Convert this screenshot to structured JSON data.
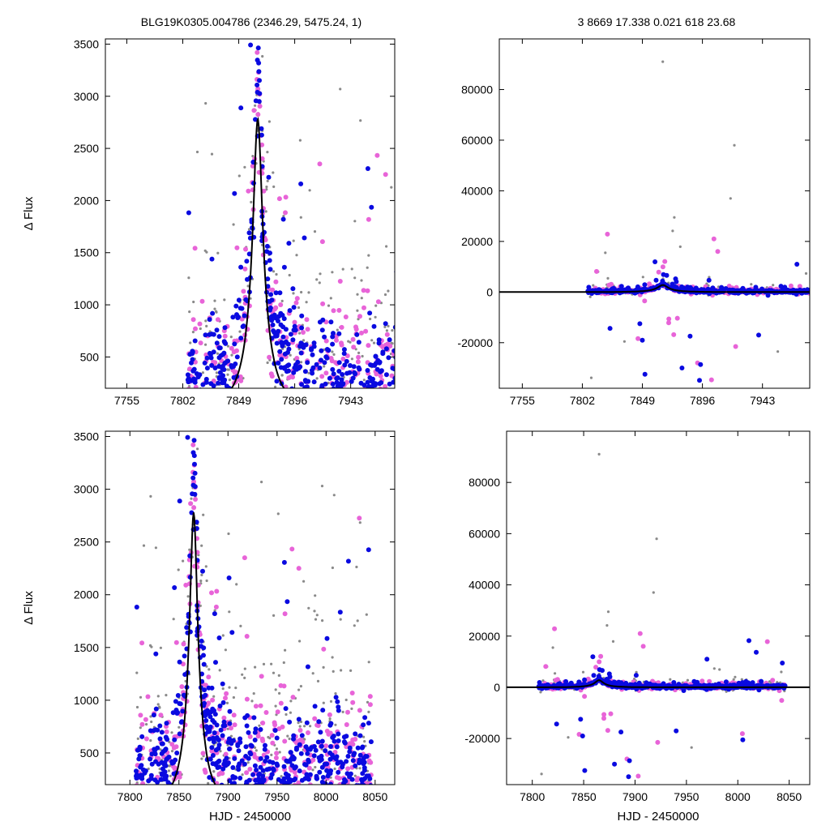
{
  "header": {
    "left": "BLG19K0305.004786 (2346.29, 5475.24,    1)",
    "right": "3   8669   17.338   0.021   618   23.68"
  },
  "colors": {
    "blue": "#0a0ae0",
    "magenta": "#e864d8",
    "gray": "#8a8a8a",
    "model": "#000000",
    "frame": "#000000"
  },
  "model": {
    "type": "microlensing-like single peak",
    "t0": 7865,
    "baseline": 0,
    "peak": 2780
  },
  "chart_data": [
    {
      "type": "scatter",
      "panel": "top-left",
      "title": "",
      "xlabel": "",
      "ylabel": "Δ Flux",
      "xlim": [
        7737,
        7980
      ],
      "ylim": [
        200,
        3550
      ],
      "xticks": [
        7755,
        7802,
        7849,
        7896,
        7943
      ],
      "xtick_labels": [
        "7755",
        "7802",
        "7849",
        "7896",
        "7943"
      ],
      "yticks": [
        500,
        1000,
        1500,
        2000,
        2500,
        3000,
        3500
      ],
      "ytick_labels": [
        "500",
        "1000",
        "1500",
        "2000",
        "2500",
        "3000",
        "3500"
      ],
      "series": [
        {
          "color": "blue",
          "marker": "large-dot",
          "note": "dense cluster tracing the peak"
        },
        {
          "color": "magenta",
          "marker": "large-dot"
        },
        {
          "color": "gray",
          "marker": "small-dot"
        }
      ],
      "model_line": true
    },
    {
      "type": "scatter",
      "panel": "top-right",
      "title": "",
      "xlabel": "",
      "ylabel": "",
      "xlim": [
        7737,
        7980
      ],
      "ylim": [
        -38000,
        100000
      ],
      "xticks": [
        7755,
        7802,
        7849,
        7896,
        7943
      ],
      "xtick_labels": [
        "7755",
        "7802",
        "7849",
        "7896",
        "7943"
      ],
      "yticks": [
        -20000,
        0,
        20000,
        40000,
        60000,
        80000
      ],
      "ytick_labels": [
        "-20000",
        "0",
        "20000",
        "40000",
        "60000",
        "80000"
      ],
      "series": [
        {
          "color": "blue",
          "marker": "large-dot"
        },
        {
          "color": "magenta",
          "marker": "large-dot"
        },
        {
          "color": "gray",
          "marker": "small-dot"
        }
      ],
      "model_line": true
    },
    {
      "type": "scatter",
      "panel": "bottom-left",
      "title": "",
      "xlabel": "HJD - 2450000",
      "ylabel": "Δ Flux",
      "xlim": [
        7775,
        8070
      ],
      "ylim": [
        200,
        3550
      ],
      "xticks": [
        7800,
        7850,
        7900,
        7950,
        8000,
        8050
      ],
      "xtick_labels": [
        "7800",
        "7850",
        "7900",
        "7950",
        "8000",
        "8050"
      ],
      "yticks": [
        500,
        1000,
        1500,
        2000,
        2500,
        3000,
        3500
      ],
      "ytick_labels": [
        "500",
        "1000",
        "1500",
        "2000",
        "2500",
        "3000",
        "3500"
      ],
      "series": [
        {
          "color": "blue",
          "marker": "large-dot"
        },
        {
          "color": "magenta",
          "marker": "large-dot"
        },
        {
          "color": "gray",
          "marker": "small-dot"
        }
      ],
      "model_line": true
    },
    {
      "type": "scatter",
      "panel": "bottom-right",
      "title": "",
      "xlabel": "HJD - 2450000",
      "ylabel": "",
      "xlim": [
        7775,
        8070
      ],
      "ylim": [
        -38000,
        100000
      ],
      "xticks": [
        7800,
        7850,
        7900,
        7950,
        8000,
        8050
      ],
      "xtick_labels": [
        "7800",
        "7850",
        "7900",
        "7950",
        "8000",
        "8050"
      ],
      "yticks": [
        -20000,
        0,
        20000,
        40000,
        60000,
        80000
      ],
      "ytick_labels": [
        "-20000",
        "0",
        "20000",
        "40000",
        "60000",
        "80000"
      ],
      "series": [
        {
          "color": "blue",
          "marker": "large-dot"
        },
        {
          "color": "magenta",
          "marker": "large-dot"
        },
        {
          "color": "gray",
          "marker": "small-dot"
        }
      ],
      "model_line": true
    }
  ]
}
